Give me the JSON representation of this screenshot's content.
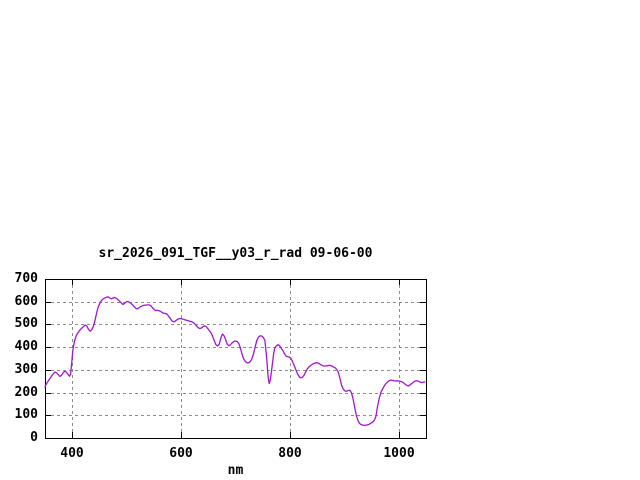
{
  "chart": {
    "colors": {
      "line": "#a018d0",
      "grid": "#8c8c8c",
      "frame": "#000000",
      "text": "#000000",
      "background": "#ffffff"
    }
  },
  "chart_data": {
    "type": "line",
    "title": "sr_2026_091_TGF__y03_r_rad 09-06-00",
    "xlabel": "nm",
    "ylabel": "",
    "xlim": [
      350,
      1050
    ],
    "ylim": [
      0,
      700
    ],
    "x_ticks": [
      400,
      600,
      800,
      1000
    ],
    "y_ticks": [
      0,
      100,
      200,
      300,
      400,
      500,
      600,
      700
    ],
    "grid": true,
    "legend": "none",
    "series": [
      {
        "name": "sr_2026_091_TGF__y03_r_rad",
        "x": [
          350,
          353,
          356,
          359,
          362,
          365,
          368,
          371,
          374,
          377,
          380,
          383,
          386,
          389,
          392,
          395,
          397,
          399,
          401,
          404,
          407,
          410,
          413,
          416,
          419,
          422,
          424,
          427,
          430,
          433,
          436,
          439,
          442,
          445,
          448,
          451,
          454,
          457,
          460,
          463,
          466,
          469,
          472,
          475,
          478,
          481,
          484,
          487,
          490,
          493,
          496,
          499,
          502,
          505,
          508,
          511,
          514,
          517,
          520,
          523,
          526,
          529,
          532,
          535,
          538,
          541,
          544,
          547,
          550,
          553,
          556,
          559,
          562,
          565,
          568,
          571,
          574,
          577,
          580,
          583,
          586,
          589,
          592,
          595,
          598,
          601,
          604,
          607,
          610,
          613,
          616,
          619,
          622,
          625,
          628,
          631,
          634,
          637,
          640,
          643,
          646,
          649,
          652,
          655,
          658,
          661,
          664,
          667,
          670,
          673,
          676,
          679,
          682,
          685,
          688,
          691,
          694,
          697,
          700,
          703,
          706,
          709,
          712,
          715,
          718,
          721,
          724,
          727,
          730,
          733,
          736,
          739,
          742,
          745,
          748,
          751,
          754,
          757,
          760,
          762,
          764,
          766,
          768,
          770,
          772,
          775,
          778,
          781,
          784,
          787,
          790,
          793,
          796,
          799,
          802,
          805,
          808,
          811,
          814,
          817,
          820,
          823,
          826,
          829,
          832,
          835,
          838,
          841,
          844,
          847,
          850,
          853,
          856,
          859,
          862,
          865,
          868,
          871,
          874,
          877,
          880,
          883,
          886,
          889,
          892,
          895,
          898,
          901,
          904,
          907,
          910,
          913,
          916,
          919,
          922,
          925,
          928,
          931,
          934,
          937,
          940,
          943,
          946,
          949,
          952,
          955,
          958,
          961,
          964,
          967,
          970,
          973,
          976,
          979,
          982,
          985,
          988,
          991,
          994,
          997,
          1000,
          1003,
          1006,
          1009,
          1012,
          1015,
          1018,
          1021,
          1024,
          1027,
          1030,
          1033,
          1036,
          1039,
          1042,
          1045,
          1048
        ],
        "y": [
          225,
          240,
          252,
          262,
          272,
          282,
          290,
          288,
          280,
          271,
          275,
          286,
          294,
          290,
          281,
          272,
          280,
          330,
          385,
          425,
          448,
          462,
          472,
          480,
          487,
          494,
          497,
          492,
          478,
          470,
          477,
          492,
          520,
          552,
          578,
          595,
          606,
          613,
          617,
          620,
          621,
          617,
          613,
          616,
          619,
          615,
          609,
          602,
          595,
          588,
          592,
          599,
          601,
          598,
          592,
          586,
          578,
          570,
          569,
          574,
          579,
          582,
          584,
          585,
          586,
          586,
          583,
          575,
          566,
          561,
          562,
          561,
          558,
          553,
          549,
          548,
          546,
          536,
          527,
          516,
          512,
          514,
          520,
          524,
          526,
          525,
          523,
          520,
          518,
          517,
          514,
          512,
          509,
          503,
          495,
          487,
          482,
          484,
          490,
          493,
          491,
          482,
          472,
          463,
          448,
          428,
          411,
          405,
          412,
          440,
          458,
          450,
          432,
          412,
          406,
          411,
          419,
          425,
          427,
          425,
          416,
          396,
          370,
          348,
          337,
          331,
          331,
          336,
          348,
          370,
          400,
          428,
          444,
          450,
          449,
          443,
          430,
          360,
          265,
          240,
          255,
          290,
          330,
          370,
          395,
          405,
          411,
          406,
          396,
          384,
          371,
          360,
          358,
          356,
          350,
          336,
          318,
          300,
          283,
          270,
          265,
          267,
          277,
          291,
          304,
          313,
          319,
          324,
          328,
          331,
          331,
          329,
          324,
          320,
          317,
          317,
          318,
          319,
          320,
          317,
          313,
          309,
          302,
          288,
          262,
          232,
          215,
          207,
          206,
          209,
          210,
          200,
          172,
          135,
          100,
          76,
          64,
          59,
          57,
          56,
          57,
          58,
          61,
          66,
          70,
          78,
          95,
          140,
          175,
          200,
          215,
          228,
          238,
          246,
          252,
          255,
          254,
          252,
          251,
          252,
          251,
          249,
          247,
          243,
          236,
          231,
          230,
          234,
          240,
          246,
          251,
          252,
          250,
          246,
          244,
          246,
          247
        ]
      }
    ]
  }
}
